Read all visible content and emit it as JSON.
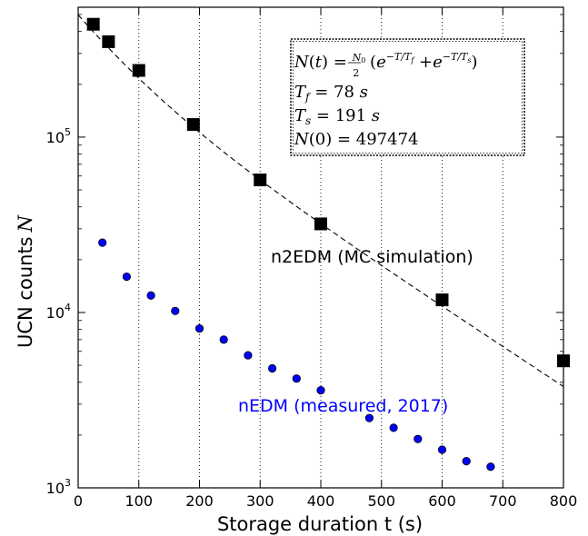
{
  "chart_data": {
    "type": "scatter",
    "xlabel": "Storage duration t (s)",
    "ylabel_text": "UCN counts",
    "ylabel_symbol": "N",
    "xlim": [
      0,
      800
    ],
    "ylim": [
      1000,
      550000
    ],
    "yscale": "log",
    "x_ticks": [
      "0",
      "100",
      "200",
      "300",
      "400",
      "500",
      "600",
      "700",
      "800"
    ],
    "y_ticks": [
      {
        "base": "10",
        "exp": "3",
        "value": 1000
      },
      {
        "base": "10",
        "exp": "4",
        "value": 10000
      },
      {
        "base": "10",
        "exp": "5",
        "value": 100000
      }
    ],
    "grid": "vertical dotted",
    "series": [
      {
        "name": "n2EDM (MC simulation)",
        "marker": "square",
        "color": "#000000",
        "x": [
          25,
          50,
          100,
          190,
          300,
          400,
          600,
          800
        ],
        "y": [
          440000,
          350000,
          240000,
          118000,
          57000,
          32000,
          11800,
          5300
        ]
      },
      {
        "name": "nEDM (measured, 2017)",
        "marker": "circle",
        "color": "#0000ff",
        "x": [
          40,
          80,
          120,
          160,
          200,
          240,
          280,
          320,
          360,
          400,
          480,
          520,
          560,
          600,
          640,
          680
        ],
        "y": [
          25000,
          16000,
          12500,
          10200,
          8100,
          7000,
          5700,
          4800,
          4200,
          3600,
          2500,
          2200,
          1900,
          1650,
          1420,
          1320
        ]
      }
    ],
    "fit": {
      "style": "dashed",
      "color": "#000000",
      "N0": 497474,
      "Tf": 78,
      "Ts": 191
    },
    "annotations": {
      "n2edm_label": "n2EDM (MC simulation)",
      "nedm_label": "nEDM (measured, 2017)",
      "formula_line1": "N(t) = (N0/2)(e^(−T/Tf) + e^(−T/Ts))",
      "formula_line2": "Tf = 78 s",
      "formula_line3": "Ts = 191 s",
      "formula_line4": "N(0) = 497474"
    }
  }
}
